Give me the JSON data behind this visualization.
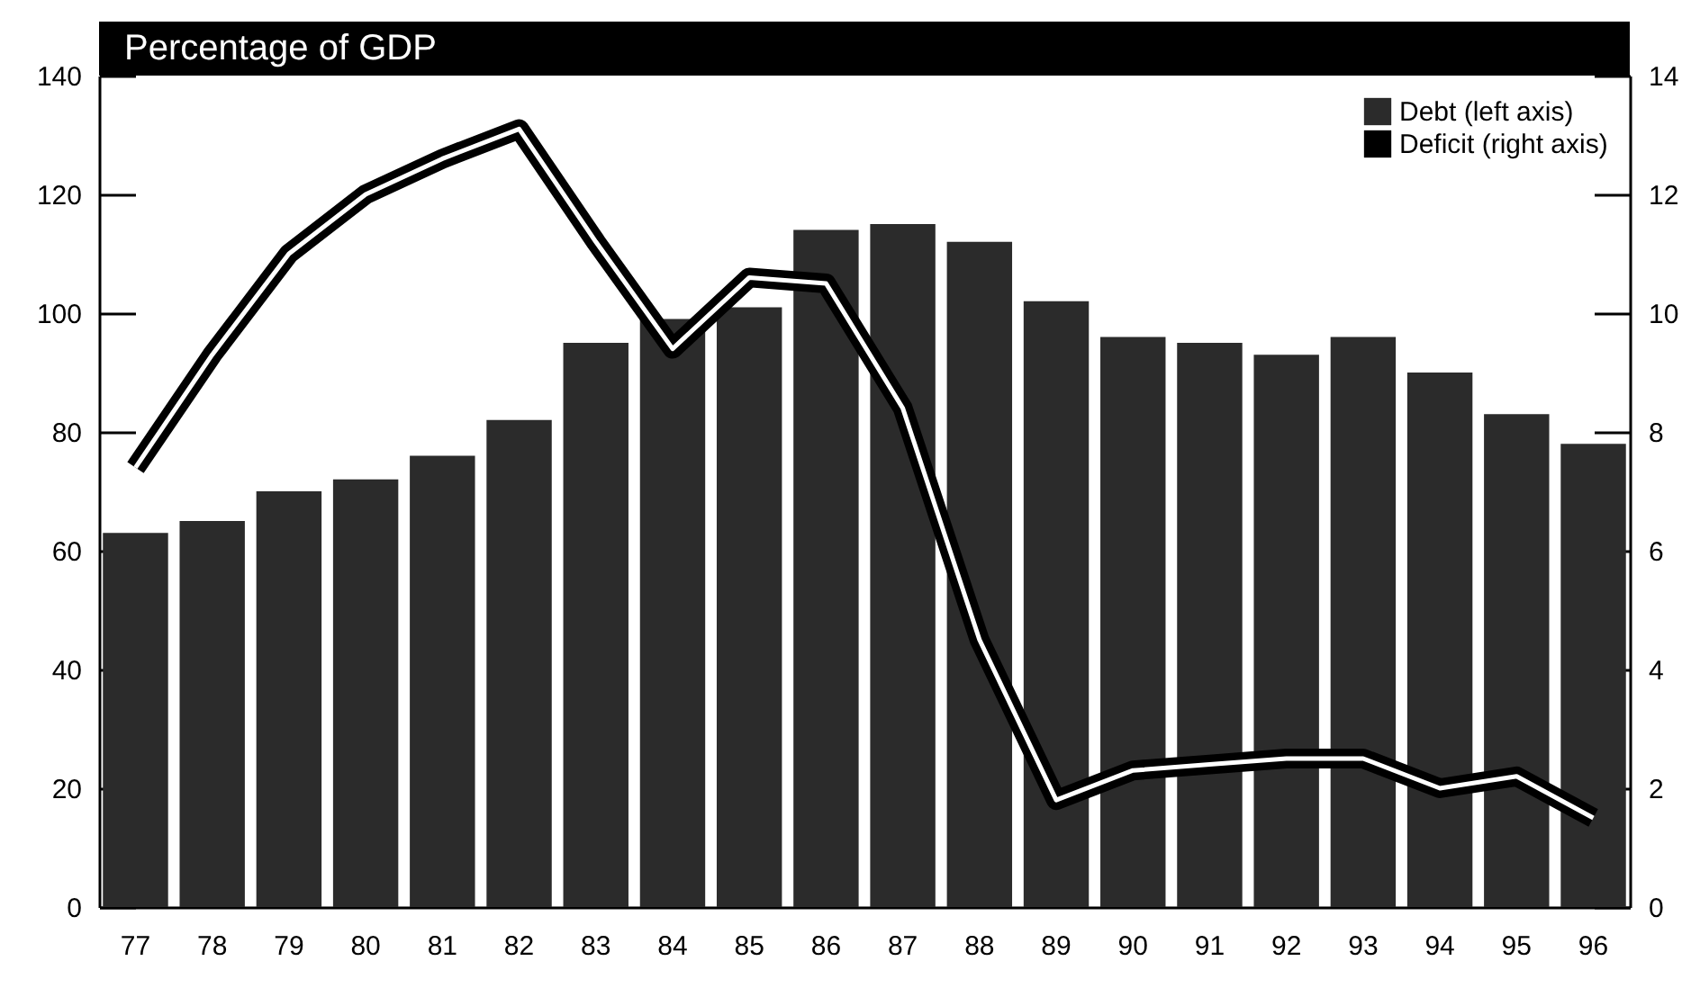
{
  "chart_data": {
    "type": "bar",
    "title": "Percentage of GDP",
    "categories": [
      "77",
      "78",
      "79",
      "80",
      "81",
      "82",
      "83",
      "84",
      "85",
      "86",
      "87",
      "88",
      "89",
      "90",
      "91",
      "92",
      "93",
      "94",
      "95",
      "96"
    ],
    "series": [
      {
        "name": "Debt (left axis)",
        "color": "#2b2b2b",
        "values": [
          63,
          65,
          70,
          72,
          76,
          82,
          95,
          99,
          101,
          114,
          115,
          112,
          102,
          96,
          95,
          93,
          96,
          90,
          83,
          78
        ]
      },
      {
        "name": "Deficit (right axis)",
        "type": "line",
        "axis": "y2",
        "color": "#000000",
        "values": [
          7.4,
          9.3,
          11.0,
          12.0,
          12.6,
          13.1,
          11.2,
          9.4,
          10.6,
          10.5,
          8.4,
          4.5,
          1.8,
          2.3,
          2.4,
          2.5,
          2.5,
          2.0,
          2.2,
          1.5
        ]
      }
    ],
    "ylim": [
      0,
      140
    ],
    "yticks": [
      0,
      20,
      40,
      60,
      80,
      100,
      120,
      140
    ],
    "y2lim": [
      0,
      14
    ],
    "y2ticks": [
      0,
      2,
      4,
      6,
      8,
      10,
      12,
      14
    ],
    "grid": false,
    "legend": "top right"
  }
}
